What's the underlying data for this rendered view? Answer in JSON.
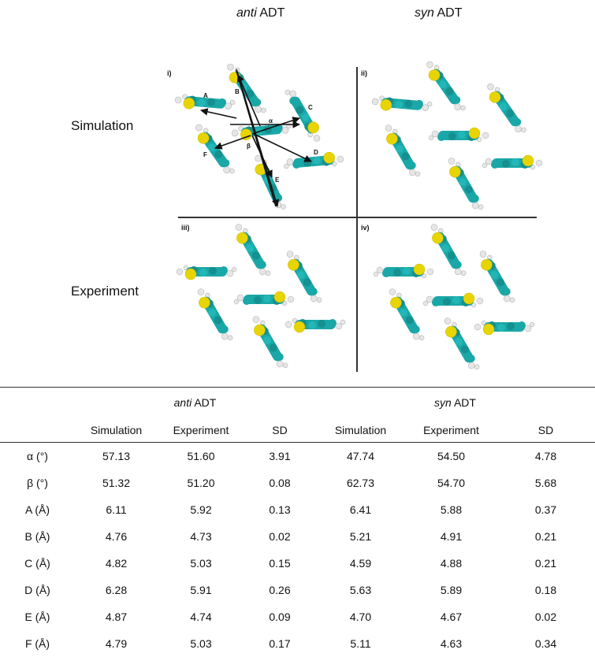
{
  "figure": {
    "col_headers": [
      {
        "italic": "anti",
        "rest": " ADT"
      },
      {
        "italic": "syn",
        "rest": " ADT"
      }
    ],
    "row_labels": [
      "Simulation",
      "Experiment"
    ],
    "panel_labels": [
      "i)",
      "ii)",
      "iii)",
      "iv)"
    ],
    "vector_labels": [
      "A",
      "B",
      "C",
      "D",
      "E",
      "F",
      "α",
      "β"
    ],
    "colors": {
      "carbon": "#1aa7a7",
      "sulfur": "#e8d400",
      "hydrogen": "#e6e6e6",
      "arrow": "#111111"
    }
  },
  "table": {
    "groups": [
      {
        "italic": "anti",
        "rest": " ADT"
      },
      {
        "italic": "syn",
        "rest": " ADT"
      }
    ],
    "columns": [
      "",
      "Simulation",
      "Experiment",
      "SD",
      "Simulation",
      "Experiment",
      "SD"
    ],
    "rows": [
      [
        "α (°)",
        "57.13",
        "51.60",
        "3.91",
        "47.74",
        "54.50",
        "4.78"
      ],
      [
        "β (°)",
        "51.32",
        "51.20",
        "0.08",
        "62.73",
        "54.70",
        "5.68"
      ],
      [
        "A (Å)",
        "6.11",
        "5.92",
        "0.13",
        "6.41",
        "5.88",
        "0.37"
      ],
      [
        "B (Å)",
        "4.76",
        "4.73",
        "0.02",
        "5.21",
        "4.91",
        "0.21"
      ],
      [
        "C (Å)",
        "4.82",
        "5.03",
        "0.15",
        "4.59",
        "4.88",
        "0.21"
      ],
      [
        "D (Å)",
        "6.28",
        "5.91",
        "0.26",
        "5.63",
        "5.89",
        "0.18"
      ],
      [
        "E (Å)",
        "4.87",
        "4.74",
        "0.09",
        "4.70",
        "4.67",
        "0.02"
      ],
      [
        "F (Å)",
        "4.79",
        "5.03",
        "0.17",
        "5.11",
        "4.63",
        "0.34"
      ]
    ]
  }
}
